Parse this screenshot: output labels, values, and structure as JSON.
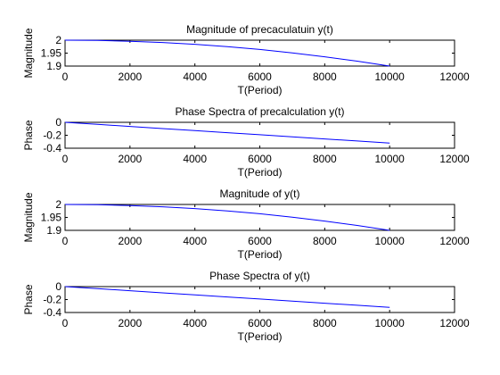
{
  "chart_data": [
    {
      "type": "line",
      "title": "Magnitude of precaculatuin y(t)",
      "xlabel": "T(Period)",
      "ylabel": "Magnitude",
      "xlim": [
        0,
        12000
      ],
      "ylim": [
        1.9,
        2.0
      ],
      "xticks": [
        0,
        2000,
        4000,
        6000,
        8000,
        10000,
        12000
      ],
      "yticks": [
        1.9,
        1.95,
        2
      ],
      "xtick_labels": [
        "0",
        "2000",
        "4000",
        "6000",
        "8000",
        "10000",
        "12000"
      ],
      "ytick_labels": [
        "1.9",
        "1.95",
        "2"
      ],
      "line_color": "#0000ff",
      "series": [
        {
          "x": [
            0,
            1000,
            2000,
            3000,
            4000,
            5000,
            6000,
            7000,
            8000,
            9000,
            10000
          ],
          "y": [
            2.0,
            1.999,
            1.996,
            1.991,
            1.984,
            1.975,
            1.964,
            1.951,
            1.936,
            1.919,
            1.9
          ]
        }
      ]
    },
    {
      "type": "line",
      "title": "Phase Spectra of precalculation y(t)",
      "xlabel": "T(Period)",
      "ylabel": "Phase",
      "xlim": [
        0,
        12000
      ],
      "ylim": [
        -0.4,
        0
      ],
      "xticks": [
        0,
        2000,
        4000,
        6000,
        8000,
        10000,
        12000
      ],
      "yticks": [
        -0.4,
        -0.2,
        0
      ],
      "xtick_labels": [
        "0",
        "2000",
        "4000",
        "6000",
        "8000",
        "10000",
        "12000"
      ],
      "ytick_labels": [
        "-0.4",
        "-0.2",
        "0"
      ],
      "line_color": "#0000ff",
      "series": [
        {
          "x": [
            0,
            1000,
            2000,
            3000,
            4000,
            5000,
            6000,
            7000,
            8000,
            9000,
            10000
          ],
          "y": [
            0,
            -0.032,
            -0.064,
            -0.096,
            -0.128,
            -0.16,
            -0.192,
            -0.224,
            -0.256,
            -0.288,
            -0.32
          ]
        }
      ]
    },
    {
      "type": "line",
      "title": "Magnitude of y(t)",
      "xlabel": "T(Period)",
      "ylabel": "Magnitude",
      "xlim": [
        0,
        12000
      ],
      "ylim": [
        1.9,
        2.0
      ],
      "xticks": [
        0,
        2000,
        4000,
        6000,
        8000,
        10000,
        12000
      ],
      "yticks": [
        1.9,
        1.95,
        2
      ],
      "xtick_labels": [
        "0",
        "2000",
        "4000",
        "6000",
        "8000",
        "10000",
        "12000"
      ],
      "ytick_labels": [
        "1.9",
        "1.95",
        "2"
      ],
      "line_color": "#0000ff",
      "series": [
        {
          "x": [
            0,
            1000,
            2000,
            3000,
            4000,
            5000,
            6000,
            7000,
            8000,
            9000,
            10000
          ],
          "y": [
            2.0,
            1.999,
            1.996,
            1.991,
            1.984,
            1.975,
            1.964,
            1.951,
            1.936,
            1.919,
            1.9
          ]
        }
      ]
    },
    {
      "type": "line",
      "title": "Phase Spectra of y(t)",
      "xlabel": "T(Period)",
      "ylabel": "Phase",
      "xlim": [
        0,
        12000
      ],
      "ylim": [
        -0.4,
        0
      ],
      "xticks": [
        0,
        2000,
        4000,
        6000,
        8000,
        10000,
        12000
      ],
      "yticks": [
        -0.4,
        -0.2,
        0
      ],
      "xtick_labels": [
        "0",
        "2000",
        "4000",
        "6000",
        "8000",
        "10000",
        "12000"
      ],
      "ytick_labels": [
        "-0.4",
        "-0.2",
        "0"
      ],
      "line_color": "#0000ff",
      "series": [
        {
          "x": [
            0,
            1000,
            2000,
            3000,
            4000,
            5000,
            6000,
            7000,
            8000,
            9000,
            10000
          ],
          "y": [
            0,
            -0.032,
            -0.064,
            -0.096,
            -0.128,
            -0.16,
            -0.192,
            -0.224,
            -0.256,
            -0.288,
            -0.32
          ]
        }
      ]
    }
  ]
}
